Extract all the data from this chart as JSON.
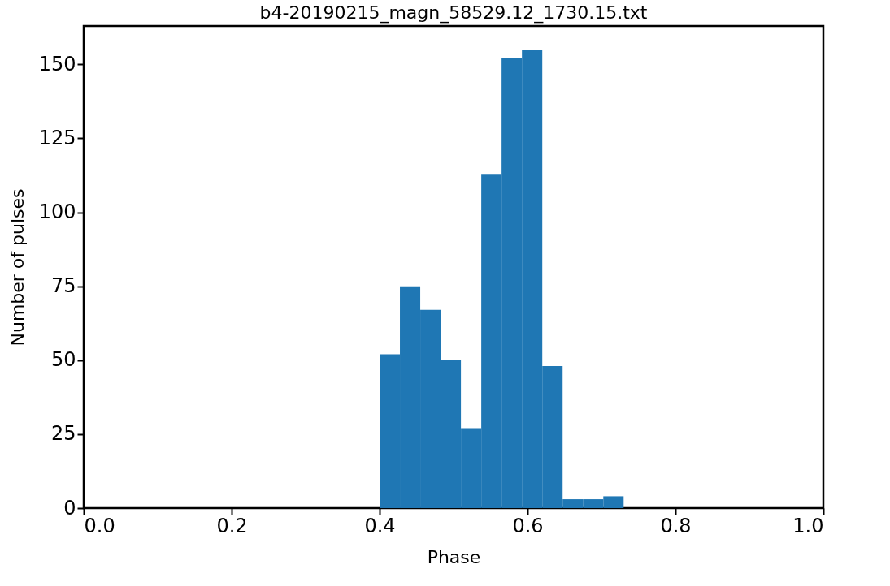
{
  "chart_data": {
    "type": "histogram",
    "title": "b4-20190215_magn_58529.12_1730.15.txt",
    "xlabel": "Phase",
    "ylabel": "Number of pulses",
    "bins": [
      0.4,
      0.4275,
      0.455,
      0.4825,
      0.51,
      0.5375,
      0.565,
      0.5925,
      0.62,
      0.6475,
      0.675,
      0.7025,
      0.73
    ],
    "values": [
      52,
      75,
      67,
      50,
      27,
      113,
      152,
      155,
      48,
      3,
      3,
      4
    ],
    "color": "#1f77b4",
    "xlim": [
      0.0,
      1.0
    ],
    "xticks": [
      {
        "value": 0.0,
        "label": "0.0"
      },
      0.2,
      0.4,
      0.6,
      0.8,
      {
        "value": 1.0,
        "label": "1.0"
      }
    ],
    "ylim": [
      0,
      163
    ],
    "yticks": [
      0,
      25,
      50,
      75,
      100,
      125,
      150
    ],
    "grid": false
  }
}
